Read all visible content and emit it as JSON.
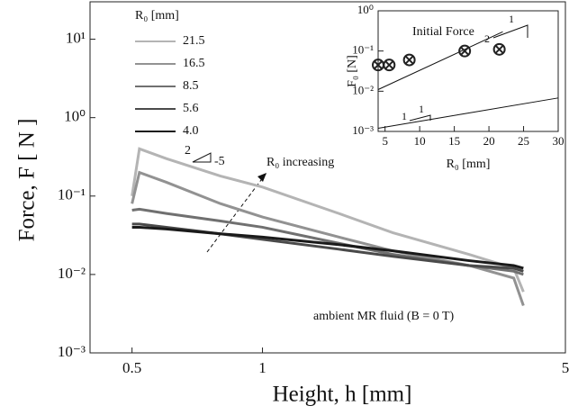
{
  "chart_data": [
    {
      "type": "line",
      "xlabel": "Height, h  [mm]",
      "ylabel": "Force, F  [ N ]",
      "log_x": true,
      "log_y": true,
      "xlim": [
        0.4,
        5
      ],
      "xticks": [
        0.5,
        1,
        5
      ],
      "ylim": [
        0.001,
        30
      ],
      "yticks": [
        {
          "value": 10,
          "label": "10¹"
        },
        {
          "value": 1,
          "label": "10⁰"
        },
        {
          "value": 0.1,
          "label": "10⁻¹"
        },
        {
          "value": 0.01,
          "label": "10⁻²"
        },
        {
          "value": 0.001,
          "label": "10⁻³"
        }
      ],
      "legend_title": "R₀ [mm]",
      "legend": "top-left",
      "x": [
        0.5,
        0.52,
        0.6,
        0.8,
        1,
        1.5,
        2,
        3,
        3.8,
        4
      ],
      "series": [
        {
          "name": "21.5",
          "color": "#b4b4b4",
          "values": [
            0.1,
            0.4,
            0.3,
            0.18,
            0.13,
            0.06,
            0.034,
            0.018,
            0.012,
            0.006
          ]
        },
        {
          "name": "16.5",
          "color": "#929292",
          "values": [
            0.08,
            0.2,
            0.15,
            0.08,
            0.054,
            0.03,
            0.02,
            0.013,
            0.009,
            0.004
          ]
        },
        {
          "name": "8.5",
          "color": "#707070",
          "values": [
            0.066,
            0.068,
            0.06,
            0.048,
            0.04,
            0.025,
            0.018,
            0.013,
            0.011,
            0.01
          ]
        },
        {
          "name": "5.6",
          "color": "#4a4a4a",
          "values": [
            0.044,
            0.044,
            0.04,
            0.033,
            0.028,
            0.021,
            0.017,
            0.013,
            0.012,
            0.011
          ]
        },
        {
          "name": "4.0",
          "color": "#1a1a1a",
          "values": [
            0.04,
            0.04,
            0.038,
            0.033,
            0.03,
            0.024,
            0.02,
            0.015,
            0.013,
            0.012
          ]
        }
      ],
      "annotations": [
        "R₀ increasing",
        "ambient MR fluid  (B = 0 T)",
        "2",
        "-5"
      ]
    },
    {
      "type": "scatter",
      "xlabel": "R₀  [mm]",
      "ylabel": "F₀  [N]",
      "log_y": true,
      "xlim": [
        4,
        30
      ],
      "xticks": [
        5,
        10,
        15,
        20,
        25,
        30
      ],
      "ylim": [
        0.001,
        1
      ],
      "yticks": [
        {
          "value": 1,
          "label": "10⁰"
        },
        {
          "value": 0.1,
          "label": "10⁻¹"
        },
        {
          "value": 0.01,
          "label": "10⁻²"
        },
        {
          "value": 0.001,
          "label": "10⁻³"
        }
      ],
      "x": [
        4,
        5.6,
        8.5,
        16.5,
        21.5
      ],
      "values": [
        0.045,
        0.045,
        0.06,
        0.1,
        0.11
      ],
      "color": "#222222",
      "fits": [
        {
          "x": [
            4,
            22
          ],
          "values": [
            0.011,
            0.3
          ]
        },
        {
          "x": [
            4,
            30
          ],
          "values": [
            0.0012,
            0.0068
          ]
        }
      ],
      "annotations": [
        "Initial Force",
        "1",
        "2",
        "1",
        "1"
      ]
    }
  ]
}
